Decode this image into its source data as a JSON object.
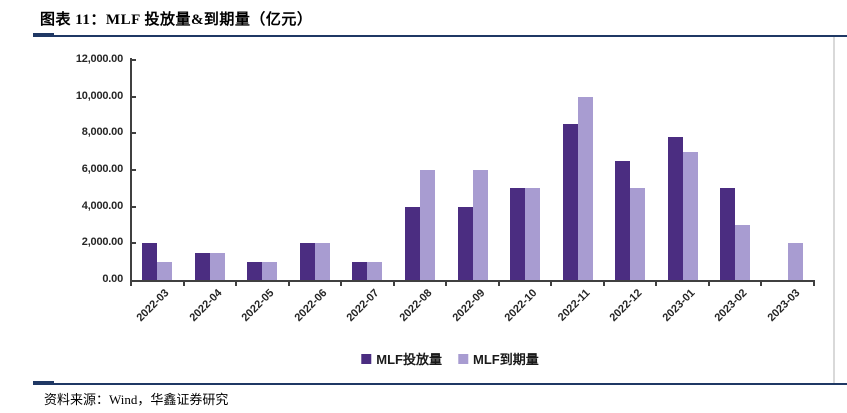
{
  "header": {
    "title": "图表 11：MLF 投放量&到期量（亿元）"
  },
  "footer": {
    "source": "资料来源：Wind，华鑫证券研究"
  },
  "colors": {
    "rule_navy": "#1F3864",
    "axis_gray": "#404040",
    "panel_border_gray": "#D9D9D9",
    "series_dark_purple": "#4B2D81",
    "series_light_purple": "#A89CD1"
  },
  "chart_data": {
    "type": "bar",
    "title": "图表 11：MLF 投放量&到期量（亿元）",
    "xlabel": "",
    "ylabel": "",
    "categories": [
      "2022-03",
      "2022-04",
      "2022-05",
      "2022-06",
      "2022-07",
      "2022-08",
      "2022-09",
      "2022-10",
      "2022-11",
      "2022-12",
      "2023-01",
      "2023-02",
      "2023-03"
    ],
    "series": [
      {
        "name": "MLF投放量",
        "color": "#4B2D81",
        "values": [
          2000,
          1500,
          1000,
          2000,
          1000,
          4000,
          4000,
          5000,
          8500,
          6500,
          7790,
          5000,
          0
        ]
      },
      {
        "name": "MLF到期量",
        "color": "#A89CD1",
        "values": [
          1000,
          1500,
          1000,
          2000,
          1000,
          6000,
          6000,
          5000,
          10000,
          5000,
          7000,
          3000,
          2000
        ]
      }
    ],
    "ylim": [
      0,
      12000
    ],
    "ytick_interval": 2000,
    "ytick_labels": [
      "0.00",
      "2,000.00",
      "4,000.00",
      "6,000.00",
      "8,000.00",
      "10,000.00",
      "12,000.00"
    ],
    "grid": false,
    "legend_position": "bottom"
  }
}
